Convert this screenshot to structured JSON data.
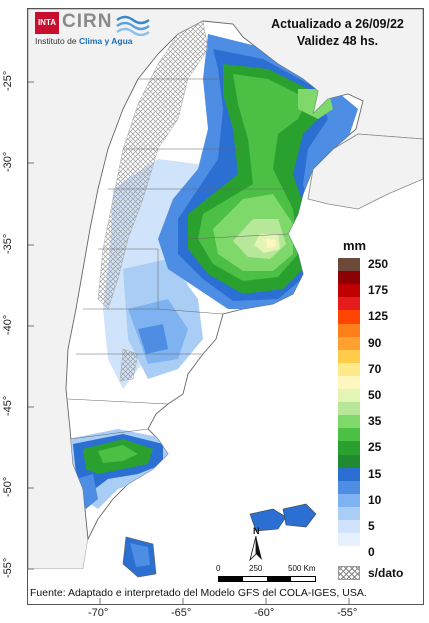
{
  "header": {
    "updated": "Actualizado a 26/09/22",
    "validity": "Validez 48 hs."
  },
  "logo": {
    "badge": "INTA",
    "name": "CIRN",
    "subtitle_prefix": "Instituto de",
    "subtitle_highlight": "Clima y Agua"
  },
  "legend": {
    "unit": "mm",
    "classes": [
      {
        "label": "250",
        "color": "#6b4a3a"
      },
      {
        "label": "",
        "color": "#8b0000"
      },
      {
        "label": "175",
        "color": "#c00000"
      },
      {
        "label": "",
        "color": "#e61c1c"
      },
      {
        "label": "125",
        "color": "#ff4500"
      },
      {
        "label": "",
        "color": "#ff7f1a"
      },
      {
        "label": "90",
        "color": "#ffa030"
      },
      {
        "label": "",
        "color": "#ffcb4a"
      },
      {
        "label": "70",
        "color": "#ffe98a"
      },
      {
        "label": "",
        "color": "#fff7c0"
      },
      {
        "label": "50",
        "color": "#e2f5b4"
      },
      {
        "label": "",
        "color": "#b7e89a"
      },
      {
        "label": "35",
        "color": "#7fd86a"
      },
      {
        "label": "",
        "color": "#4cbf45"
      },
      {
        "label": "25",
        "color": "#2aa02e"
      },
      {
        "label": "",
        "color": "#1f8a30"
      },
      {
        "label": "15",
        "color": "#2a6fd1"
      },
      {
        "label": "",
        "color": "#4d8de3"
      },
      {
        "label": "10",
        "color": "#7fb2f0"
      },
      {
        "label": "",
        "color": "#a9cdf5"
      },
      {
        "label": "5",
        "color": "#cfe3fa"
      },
      {
        "label": "",
        "color": "#e6f1fd"
      },
      {
        "label": "0",
        "color": "#ffffff"
      }
    ],
    "nodata_label": "s/dato"
  },
  "axes": {
    "lat_ticks": [
      "-25°",
      "-30°",
      "-35°",
      "-40°",
      "-45°",
      "-50°",
      "-55°"
    ],
    "lon_ticks": [
      "-70°",
      "-65°",
      "-60°",
      "-55°"
    ]
  },
  "scale": {
    "labels": [
      "0",
      "250",
      "500 Km"
    ]
  },
  "north_label": "N",
  "footer": "Fuente: Adaptado e interpretado del Modelo GFS del COLA-IGES, USA."
}
